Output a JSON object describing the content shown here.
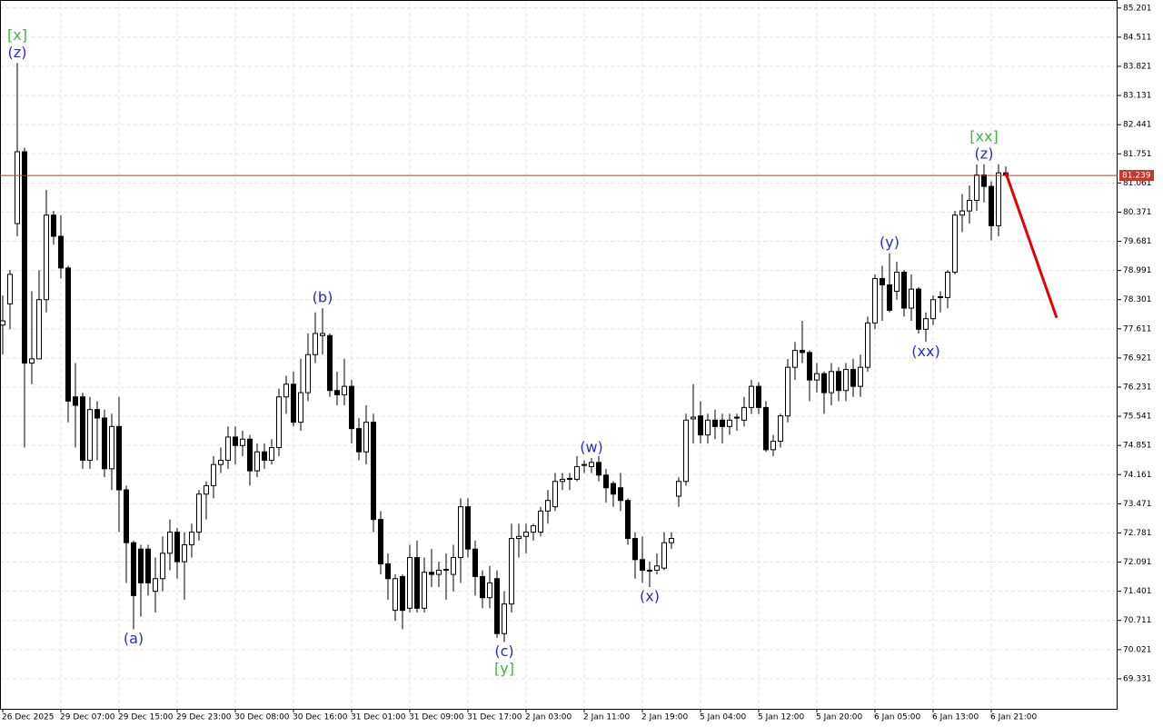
{
  "chart_data": {
    "type": "candlestick",
    "categories": [
      "26 Dec 2025",
      null,
      null,
      null,
      null,
      null,
      null,
      null,
      "29 Dec 07:00",
      null,
      null,
      null,
      null,
      null,
      null,
      null,
      "29 Dec 15:00",
      null,
      null,
      null,
      null,
      null,
      null,
      null,
      "29 Dec 23:00",
      null,
      null,
      null,
      null,
      null,
      null,
      null,
      "30 Dec 08:00",
      null,
      null,
      null,
      null,
      null,
      null,
      null,
      "30 Dec 16:00",
      null,
      null,
      null,
      null,
      null,
      null,
      null,
      "31 Dec 01:00",
      null,
      null,
      null,
      null,
      null,
      null,
      null,
      "31 Dec 09:00",
      null,
      null,
      null,
      null,
      null,
      null,
      null,
      "31 Dec 17:00",
      null,
      null,
      null,
      null,
      null,
      null,
      null,
      "2 Jan 03:00",
      null,
      null,
      null,
      null,
      null,
      null,
      null,
      "2 Jan 11:00",
      null,
      null,
      null,
      null,
      null,
      null,
      null,
      "2 Jan 19:00",
      null,
      null,
      null,
      null,
      null,
      null,
      null,
      "5 Jan 04:00",
      null,
      null,
      null,
      null,
      null,
      null,
      null,
      "5 Jan 12:00",
      null,
      null,
      null,
      null,
      null,
      null,
      null,
      "5 Jan 20:00",
      null,
      null,
      null,
      null,
      null,
      null,
      null,
      "6 Jan 05:00",
      null,
      null,
      null,
      null,
      null,
      null,
      null,
      "6 Jan 13:00",
      null,
      null,
      null,
      null,
      null,
      null,
      null,
      "6 Jan 21:00",
      null,
      null
    ],
    "open": [
      77.7,
      78.2,
      80.1,
      81.8,
      76.8,
      76.9,
      78.3,
      80.3,
      79.8,
      79.05,
      76.0,
      76.0,
      74.5,
      75.7,
      75.5,
      74.3,
      75.3,
      73.8,
      72.55,
      72.4,
      72.4,
      71.4,
      71.7,
      72.3,
      72.8,
      72.1,
      72.5,
      72.8,
      73.7,
      73.9,
      74.4,
      74.5,
      75.05,
      74.85,
      75.0,
      74.25,
      74.7,
      74.5,
      74.8,
      76.0,
      76.3,
      75.4,
      76.1,
      77.0,
      77.45,
      77.45,
      76.15,
      76.05,
      76.25,
      75.25,
      74.7,
      75.4,
      73.1,
      72.05,
      70.95,
      71.75,
      71.0,
      72.2,
      71.0,
      71.85,
      71.8,
      71.9,
      71.8,
      72.2,
      73.4,
      72.4,
      71.75,
      71.25,
      71.7,
      70.4,
      71.1,
      72.65,
      72.7,
      72.8,
      72.8,
      73.3,
      73.4,
      74.0,
      74.05,
      74.05,
      74.38,
      74.35,
      74.45,
      74.15,
      73.95,
      73.85,
      73.55,
      72.65,
      72.15,
      71.9,
      71.9,
      71.95,
      72.55,
      73.65,
      74.0,
      75.48,
      75.55,
      75.1,
      75.45,
      75.45,
      75.3,
      75.5,
      75.45,
      75.75,
      76.25,
      75.75,
      74.75,
      74.95,
      75.55,
      76.7,
      77.1,
      77.05,
      76.4,
      76.55,
      76.1,
      76.6,
      76.15,
      76.65,
      76.25,
      76.7,
      77.75,
      78.8,
      78.65,
      78.5,
      78.95,
      78.1,
      78.55,
      77.6,
      77.85,
      78.35,
      78.35,
      78.95,
      80.3,
      80.4,
      80.65,
      81.25,
      80.98,
      80.05,
      81.3
    ],
    "high": [
      78.4,
      79.0,
      83.9,
      81.9,
      78.5,
      79.0,
      80.9,
      80.4,
      80.3,
      79.1,
      76.8,
      76.1,
      76.0,
      75.9,
      75.7,
      75.6,
      76.0,
      73.9,
      72.6,
      72.5,
      72.5,
      72.2,
      72.7,
      73.1,
      72.9,
      72.8,
      73.0,
      73.8,
      74.0,
      74.6,
      74.8,
      75.3,
      75.3,
      75.2,
      75.1,
      74.9,
      74.9,
      75.0,
      76.2,
      76.5,
      76.6,
      76.9,
      77.5,
      78.0,
      78.1,
      77.5,
      76.6,
      76.9,
      76.4,
      75.5,
      75.8,
      75.6,
      73.3,
      72.3,
      71.8,
      71.8,
      72.5,
      72.6,
      72.2,
      72.4,
      72.1,
      72.3,
      72.5,
      73.6,
      73.6,
      72.6,
      71.9,
      72.0,
      71.9,
      71.4,
      73.0,
      73.0,
      73.0,
      73.0,
      73.4,
      73.8,
      74.2,
      74.2,
      74.2,
      74.6,
      74.5,
      74.55,
      74.6,
      74.3,
      74.0,
      74.2,
      73.6,
      72.8,
      72.7,
      72.1,
      72.3,
      72.8,
      72.8,
      74.1,
      75.6,
      76.3,
      75.9,
      75.6,
      75.7,
      75.6,
      75.6,
      75.6,
      76.0,
      76.4,
      76.35,
      75.9,
      75.1,
      75.6,
      76.9,
      77.3,
      77.8,
      77.1,
      76.8,
      76.6,
      76.8,
      76.7,
      76.8,
      76.9,
      77.0,
      77.9,
      78.9,
      79.1,
      79.4,
      79.2,
      79.0,
      78.9,
      78.6,
      78.0,
      78.4,
      78.5,
      79.0,
      80.4,
      80.8,
      81.0,
      81.5,
      81.5,
      81.1,
      81.5,
      81.45
    ],
    "low": [
      77.0,
      77.6,
      79.8,
      74.8,
      76.3,
      76.9,
      78.0,
      79.6,
      78.8,
      75.4,
      74.8,
      74.3,
      74.3,
      74.5,
      74.1,
      73.8,
      72.8,
      71.6,
      70.5,
      70.8,
      71.3,
      70.9,
      71.4,
      71.9,
      71.7,
      71.2,
      72.2,
      72.6,
      73.1,
      73.6,
      74.2,
      74.3,
      74.4,
      74.6,
      73.9,
      74.1,
      74.3,
      74.4,
      74.6,
      75.6,
      75.3,
      75.2,
      75.9,
      76.8,
      77.0,
      76.0,
      75.8,
      75.8,
      74.9,
      74.5,
      74.4,
      72.8,
      71.8,
      71.2,
      70.7,
      70.5,
      70.9,
      70.9,
      70.9,
      71.5,
      71.5,
      71.2,
      71.4,
      71.6,
      72.2,
      71.3,
      71.0,
      71.0,
      70.3,
      70.2,
      70.9,
      72.2,
      72.3,
      72.6,
      72.7,
      73.0,
      73.3,
      73.8,
      73.8,
      74.0,
      74.2,
      74.2,
      74.0,
      73.5,
      73.4,
      73.3,
      72.5,
      71.7,
      71.6,
      71.5,
      71.8,
      71.9,
      72.4,
      73.4,
      73.9,
      74.9,
      74.9,
      74.9,
      75.0,
      74.9,
      75.1,
      75.2,
      75.3,
      75.6,
      75.6,
      74.7,
      74.6,
      74.8,
      75.4,
      76.4,
      76.8,
      75.9,
      76.1,
      75.6,
      75.8,
      75.9,
      75.9,
      76.0,
      76.0,
      76.6,
      77.6,
      77.8,
      78.0,
      78.3,
      77.9,
      77.8,
      77.5,
      77.3,
      77.7,
      78.0,
      78.1,
      78.9,
      79.9,
      80.1,
      80.4,
      80.6,
      79.7,
      79.8,
      81.2
    ],
    "close": [
      77.8,
      78.9,
      81.8,
      76.8,
      76.9,
      78.3,
      80.3,
      79.8,
      79.05,
      75.9,
      75.8,
      74.5,
      75.7,
      75.5,
      74.3,
      75.3,
      73.8,
      72.55,
      71.3,
      71.6,
      71.6,
      71.7,
      72.3,
      72.8,
      72.1,
      72.5,
      72.8,
      73.7,
      73.9,
      74.4,
      74.5,
      75.05,
      74.85,
      75.0,
      74.25,
      74.7,
      74.5,
      74.8,
      76.0,
      76.3,
      75.4,
      76.1,
      77.0,
      77.5,
      77.5,
      76.15,
      76.05,
      76.25,
      75.25,
      74.7,
      75.4,
      73.1,
      72.05,
      71.7,
      71.7,
      70.95,
      72.2,
      71.0,
      71.85,
      71.8,
      71.9,
      71.92,
      72.2,
      73.4,
      72.4,
      71.75,
      71.25,
      71.6,
      70.4,
      71.1,
      72.65,
      72.7,
      72.8,
      72.95,
      73.3,
      73.55,
      74.0,
      74.05,
      74.07,
      74.35,
      74.4,
      74.45,
      74.15,
      73.85,
      73.7,
      73.55,
      72.65,
      72.15,
      71.9,
      71.88,
      72.0,
      72.55,
      72.65,
      74.0,
      75.45,
      75.52,
      75.1,
      75.45,
      75.3,
      75.3,
      75.45,
      75.52,
      75.75,
      76.25,
      75.75,
      74.75,
      74.95,
      75.55,
      76.7,
      77.1,
      77.05,
      76.4,
      76.55,
      76.1,
      76.6,
      76.15,
      76.65,
      76.25,
      76.7,
      77.75,
      78.8,
      78.65,
      78.05,
      78.95,
      78.1,
      78.55,
      77.6,
      77.85,
      78.3,
      78.37,
      78.95,
      80.3,
      80.4,
      80.65,
      81.25,
      80.98,
      80.05,
      81.3,
      81.24
    ],
    "ylim": [
      68.62,
      85.39
    ],
    "yticks": [
      85.201,
      84.511,
      83.821,
      83.131,
      82.441,
      81.751,
      81.061,
      80.371,
      79.681,
      78.991,
      78.301,
      77.611,
      76.921,
      76.231,
      75.541,
      74.851,
      74.161,
      73.471,
      72.781,
      72.091,
      71.401,
      70.711,
      70.021,
      69.331
    ],
    "grid": true,
    "current_price": {
      "value": 81.239,
      "color": "#c0392b"
    },
    "forecast": {
      "color": "#e60000",
      "candles": [
        138,
        145
      ],
      "values": [
        81.3,
        77.87
      ]
    },
    "annotations": [
      {
        "candle": 2,
        "side": "above",
        "labels": [
          {
            "text": "[x]",
            "color": "#3cb83c"
          },
          {
            "text": "(z)",
            "color": "#2a2ad0"
          }
        ]
      },
      {
        "candle": 18,
        "side": "below",
        "labels": [
          {
            "text": "(a)",
            "color": "#2a2ad0"
          }
        ]
      },
      {
        "candle": 44,
        "side": "above",
        "labels": [
          {
            "text": "(b)",
            "color": "#2a2ad0"
          }
        ]
      },
      {
        "candle": 69,
        "side": "below",
        "labels": [
          {
            "text": "(c)",
            "color": "#2a2ad0"
          },
          {
            "text": "[y]",
            "color": "#3cb83c"
          }
        ]
      },
      {
        "candle": 81,
        "side": "above",
        "labels": [
          {
            "text": "(w)",
            "color": "#2a2ad0"
          }
        ]
      },
      {
        "candle": 89,
        "side": "below",
        "labels": [
          {
            "text": "(x)",
            "color": "#2a2ad0"
          }
        ]
      },
      {
        "candle": 122,
        "side": "above",
        "labels": [
          {
            "text": "(y)",
            "color": "#2a2ad0"
          }
        ]
      },
      {
        "candle": 127,
        "side": "below",
        "labels": [
          {
            "text": "(xx)",
            "color": "#2a2ad0"
          }
        ]
      },
      {
        "candle": 135,
        "side": "above",
        "labels": [
          {
            "text": "[xx]",
            "color": "#3cb83c"
          },
          {
            "text": "(z)",
            "color": "#2a2ad0"
          }
        ]
      }
    ]
  }
}
